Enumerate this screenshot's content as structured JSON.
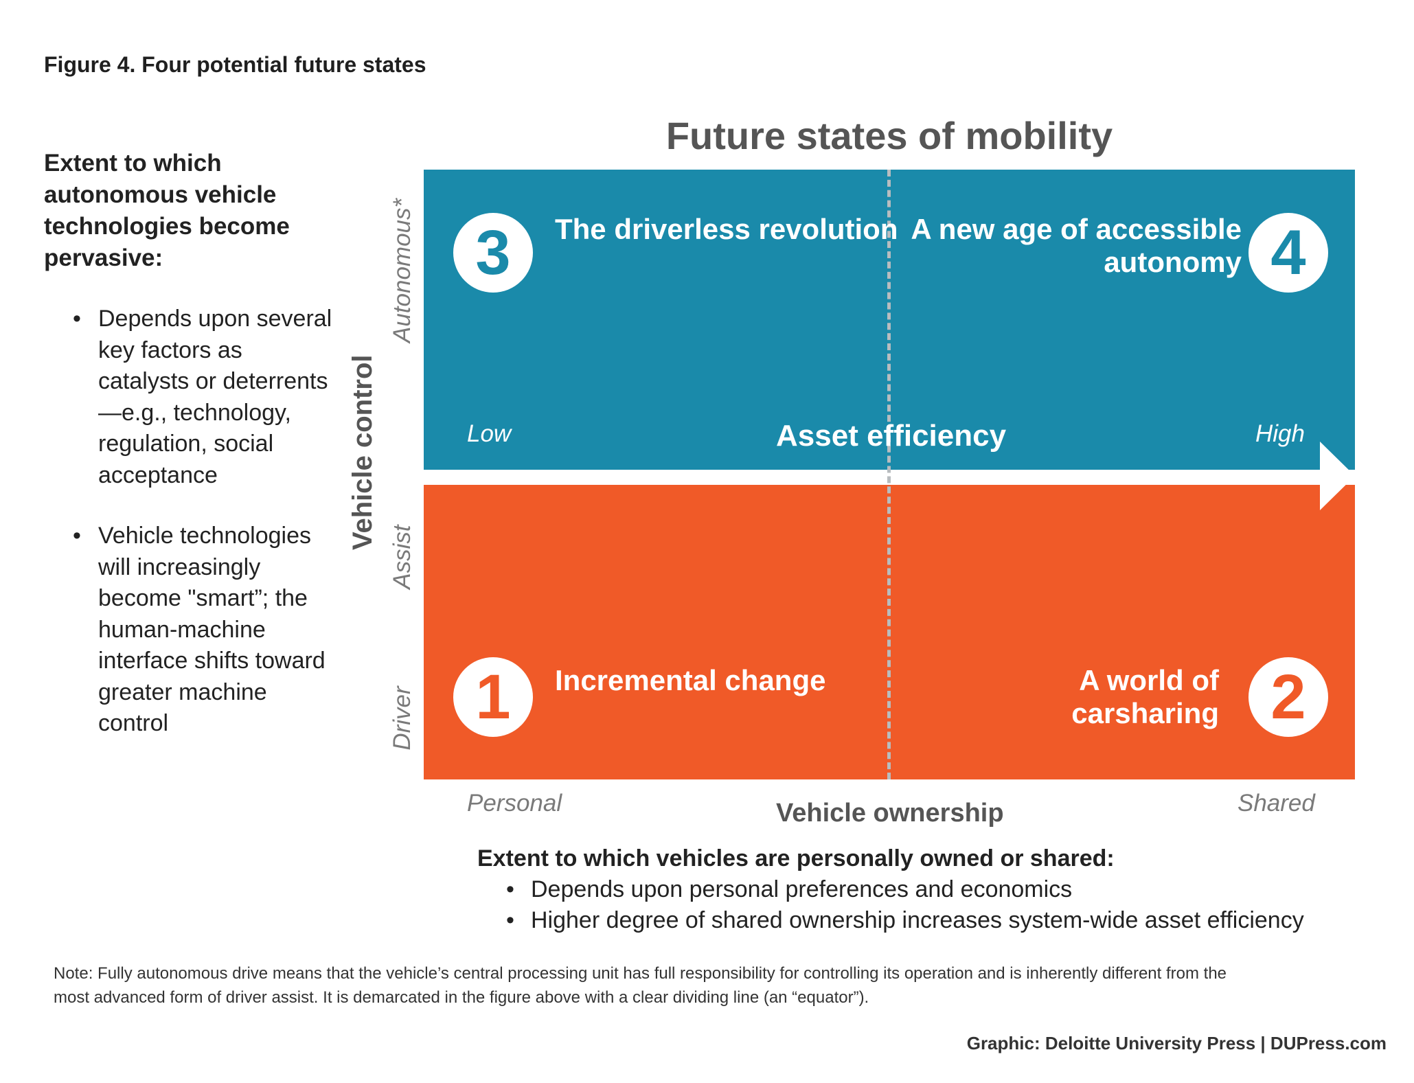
{
  "figure_title": "Figure 4. Four potential future states",
  "side_panel": {
    "heading": "Extent to which autonomous vehicle technologies become pervasive:",
    "bullets": [
      "Depends upon several key factors as catalysts or deterrents—e.g., technology, regulation, social acceptance",
      "Vehicle technologies will increasingly become \"smart”; the human-machine interface shifts toward greater machine control"
    ]
  },
  "chart": {
    "title": "Future states of mobility",
    "y_axis": {
      "label": "Vehicle control",
      "ticks": [
        "Autonomous*",
        "Assist",
        "Driver"
      ]
    },
    "x_axis": {
      "label": "Vehicle ownership",
      "ticks": [
        "Personal",
        "Shared"
      ]
    },
    "efficiency_axis": {
      "label": "Asset efficiency",
      "low": "Low",
      "high": "High"
    },
    "quadrants": [
      {
        "number": "3",
        "label": "The driverless revolution"
      },
      {
        "number": "4",
        "label": "A new age of accessible autonomy"
      },
      {
        "number": "1",
        "label": "Incremental change"
      },
      {
        "number": "2",
        "label": "A world of carsharing"
      }
    ],
    "colors": {
      "autonomous": "#1a8aaa",
      "driver": "#f05a28",
      "divider": "#b8bcbf",
      "axis_text": "#555555"
    }
  },
  "bottom_panel": {
    "heading": "Extent to which vehicles are personally owned or shared:",
    "bullets": [
      "Depends upon personal preferences and economics",
      "Higher degree of shared ownership increases system-wide asset efficiency"
    ]
  },
  "note": "Note: Fully autonomous drive means that the vehicle’s central processing unit has full responsibility for controlling its operation and is inherently different from the most advanced form of driver assist. It is demarcated in the figure above with a clear dividing line (an “equator”).",
  "credit": "Graphic: Deloitte University Press  |  DUPress.com"
}
